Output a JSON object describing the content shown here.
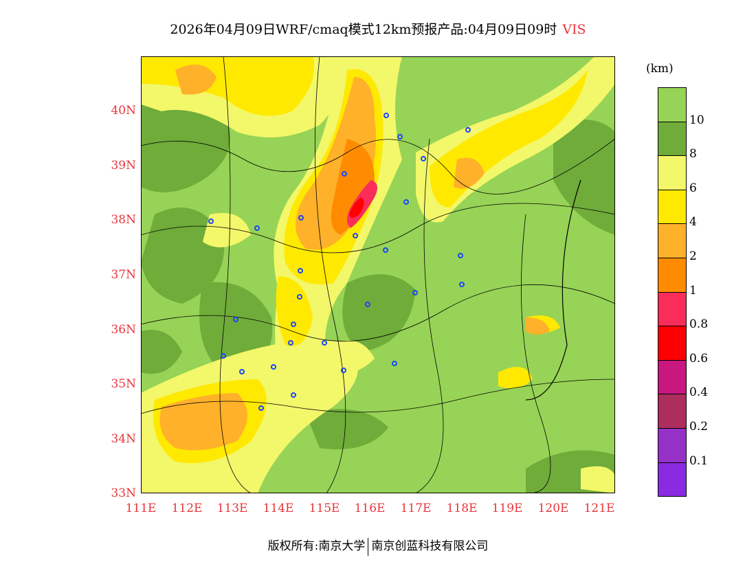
{
  "title": {
    "main": "2026年04月09日WRF/cmaq模式12km预报产品:04月09日09时",
    "variable": "VIS"
  },
  "axes": {
    "lat_labels": [
      "40N",
      "39N",
      "38N",
      "37N",
      "36N",
      "35N",
      "34N",
      "33N"
    ],
    "lon_labels": [
      "111E",
      "112E",
      "113E",
      "114E",
      "115E",
      "116E",
      "117E",
      "118E",
      "119E",
      "120E",
      "121E"
    ]
  },
  "legend": {
    "unit": "(km)",
    "colors": [
      "#97d356",
      "#6fac3a",
      "#f3f76a",
      "#ffe900",
      "#ffb12a",
      "#ff8c00",
      "#fa2d5a",
      "#ff0000",
      "#c8177f",
      "#ad2e5c",
      "#9631c8",
      "#8a2be2"
    ],
    "labels": [
      "10",
      "8",
      "6",
      "4",
      "2",
      "1",
      "0.8",
      "0.6",
      "0.4",
      "0.2",
      "0.1"
    ]
  },
  "footer": {
    "left": "版权所有:南京大学",
    "right": "南京创蓝科技有限公司"
  }
}
